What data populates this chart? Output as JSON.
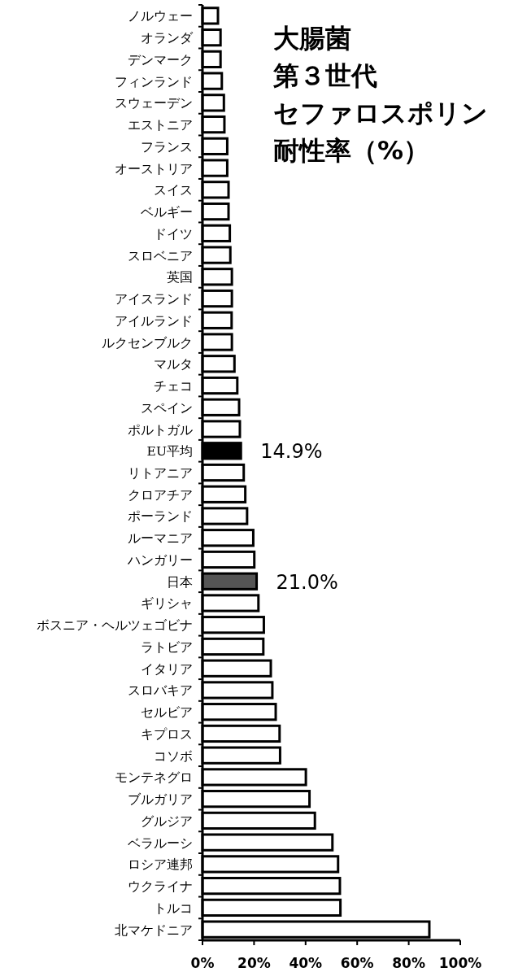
{
  "chart_data": {
    "type": "bar",
    "orientation": "horizontal",
    "title": "大腸菌",
    "annotations": [
      "第３世代",
      "セファロスポリン",
      "耐性率（%）"
    ],
    "categories": [
      "ノルウェー",
      "オランダ",
      "デンマーク",
      "フィンランド",
      "スウェーデン",
      "エストニア",
      "フランス",
      "オーストリア",
      "スイス",
      "ベルギー",
      "ドイツ",
      "スロベニア",
      "英国",
      "アイスランド",
      "アイルランド",
      "ルクセンブルク",
      "マルタ",
      "チェコ",
      "スペイン",
      "ポルトガル",
      "EU平均",
      "リトアニア",
      "クロアチア",
      "ポーランド",
      "ルーマニア",
      "ハンガリー",
      "日本",
      "ギリシャ",
      "ボスニア・ヘルツェゴビナ",
      "ラトビア",
      "イタリア",
      "スロバキア",
      "セルビア",
      "キプロス",
      "コソボ",
      "モンテネグロ",
      "ブルガリア",
      "グルジア",
      "ベラルーシ",
      "ロシア連邦",
      "ウクライナ",
      "トルコ",
      "北マケドニア"
    ],
    "values": [
      6.0,
      7.0,
      7.0,
      7.5,
      8.3,
      8.5,
      9.6,
      9.6,
      10.1,
      10.1,
      10.6,
      10.8,
      11.4,
      11.4,
      11.3,
      11.4,
      12.4,
      13.5,
      14.2,
      14.5,
      14.9,
      16.0,
      16.6,
      17.3,
      19.7,
      20.1,
      21.0,
      21.7,
      23.8,
      23.6,
      26.5,
      27.1,
      28.4,
      29.9,
      30.1,
      40.1,
      41.5,
      43.6,
      50.4,
      52.6,
      53.3,
      53.5,
      88.0
    ],
    "colors": [
      "#ffffff",
      "#ffffff",
      "#ffffff",
      "#ffffff",
      "#ffffff",
      "#ffffff",
      "#ffffff",
      "#ffffff",
      "#ffffff",
      "#ffffff",
      "#ffffff",
      "#ffffff",
      "#ffffff",
      "#ffffff",
      "#ffffff",
      "#ffffff",
      "#ffffff",
      "#ffffff",
      "#ffffff",
      "#ffffff",
      "#000000",
      "#ffffff",
      "#ffffff",
      "#ffffff",
      "#ffffff",
      "#ffffff",
      "#555555",
      "#ffffff",
      "#ffffff",
      "#ffffff",
      "#ffffff",
      "#ffffff",
      "#ffffff",
      "#ffffff",
      "#ffffff",
      "#ffffff",
      "#ffffff",
      "#ffffff",
      "#ffffff",
      "#ffffff",
      "#ffffff",
      "#ffffff",
      "#ffffff"
    ],
    "value_labels": [
      null,
      null,
      null,
      null,
      null,
      null,
      null,
      null,
      null,
      null,
      null,
      null,
      null,
      null,
      null,
      null,
      null,
      null,
      null,
      null,
      "14.9%",
      null,
      null,
      null,
      null,
      null,
      "21.0%",
      null,
      null,
      null,
      null,
      null,
      null,
      null,
      null,
      null,
      null,
      null,
      null,
      null,
      null,
      null,
      null
    ],
    "xlim": [
      0,
      100
    ],
    "xticks": [
      {
        "value": 0,
        "label": "0%"
      },
      {
        "value": 20,
        "label": "20%"
      },
      {
        "value": 40,
        "label": "40%"
      },
      {
        "value": 60,
        "label": "60%"
      },
      {
        "value": 80,
        "label": "80%"
      },
      {
        "value": 100,
        "label": "100%"
      }
    ]
  }
}
